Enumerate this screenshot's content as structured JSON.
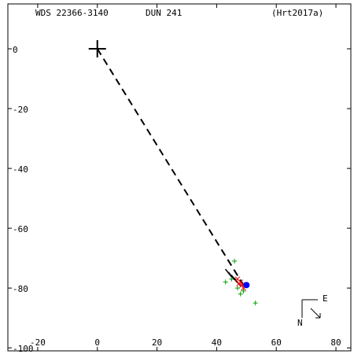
{
  "chart_data": {
    "type": "scatter",
    "title": "WDS 22366-3140",
    "subtitle": "DUN 241",
    "reference": "(Hrt2017a)",
    "compass": {
      "east": "E",
      "north": "N"
    },
    "xlim": [
      -30,
      85
    ],
    "ylim": [
      -101,
      15
    ],
    "xticks": [
      -20,
      0,
      20,
      40,
      60,
      80
    ],
    "yticks": [
      0,
      -20,
      -40,
      -60,
      -80,
      -100
    ],
    "series": [
      {
        "color": "#000000",
        "marker": "large-cross",
        "x": [
          0
        ],
        "values": [
          0
        ]
      },
      {
        "color": "#000000",
        "marker": "dashed-line",
        "x": [
          0,
          49
        ],
        "values": [
          0,
          -79
        ]
      },
      {
        "color": "#00a000",
        "marker": "plus",
        "x": [
          46,
          43,
          48,
          49,
          53,
          45,
          47
        ],
        "values": [
          -71,
          -78,
          -82,
          -81,
          -85,
          -77,
          -80
        ]
      },
      {
        "color": "#000000",
        "marker": "tick",
        "x": [
          44,
          45,
          46,
          47
        ],
        "values": [
          -75,
          -76,
          -77,
          -78
        ]
      },
      {
        "color": "#ff0000",
        "marker": "cross",
        "x": [
          47,
          48,
          48.5,
          49,
          47.5
        ],
        "values": [
          -77,
          -78,
          -79,
          -80,
          -78.5
        ]
      },
      {
        "color": "#0000ff",
        "marker": "dot",
        "x": [
          50
        ],
        "values": [
          -79
        ]
      }
    ]
  }
}
